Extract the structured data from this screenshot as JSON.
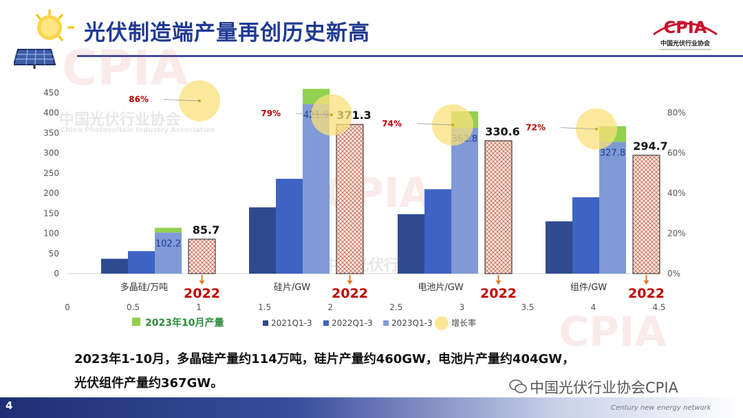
{
  "header": {
    "title": "光伏制造端产量再创历史新高",
    "logo_text": "CPIA",
    "logo_subtitle": "中国光伏行业协会"
  },
  "watermark": {
    "cpia": "CPIA",
    "cn": "中国光伏行业协会",
    "en": "China Photovoltaic Industry Association"
  },
  "summary": {
    "line1": "2023年1-10月，多晶硅产量约114万吨，硅片产量约460GW，电池片产量约404GW，",
    "line2": "光伏组件产量约367GW。"
  },
  "footer": {
    "page_number": "4",
    "wechat_account": "中国光伏行业协会CPIA",
    "site": "Century new energy network"
  },
  "colors": {
    "s2021": "#2f4b8f",
    "s2022": "#3f63c4",
    "s2023": "#7f9ad6",
    "oct": "#92d050",
    "growth_bubble": "#f9e07a",
    "growth_label": "#c00000",
    "year_label": "#c00000",
    "arrow": "#e07b28",
    "hatch_fill": "#fbe9d8",
    "hatch_line": "#c0504d"
  },
  "chart_data": {
    "type": "bar",
    "categories": [
      "多晶硅/万吨",
      "硅片/GW",
      "电池片/GW",
      "组件/GW"
    ],
    "series": [
      {
        "name": "2021Q1-3",
        "values": [
          37,
          165,
          148,
          130
        ]
      },
      {
        "name": "2022Q1-3",
        "values": [
          56,
          236,
          210,
          190
        ]
      },
      {
        "name": "2023Q1-3",
        "values": [
          102.2,
          421.9,
          362.8,
          327.8
        ],
        "labels": [
          "102.2",
          "421.9",
          "362.8",
          "327.8"
        ]
      },
      {
        "name": "2023年10月产量",
        "values": [
          12,
          38,
          41,
          39
        ],
        "stacked_on": "2023Q1-3"
      },
      {
        "name": "增长率",
        "axis": "right",
        "values": [
          0.86,
          0.79,
          0.74,
          0.72
        ],
        "labels": [
          "86%",
          "79%",
          "74%",
          "72%"
        ]
      }
    ],
    "full_year_2022": {
      "label": "2022",
      "values": [
        85.7,
        371.3,
        330.6,
        294.7
      ],
      "value_labels": [
        "85.7",
        "371.3",
        "330.6",
        "294.7"
      ]
    },
    "y_left": {
      "min": 0,
      "max": 450,
      "ticks": [
        "0",
        "50",
        "100",
        "150",
        "200",
        "250",
        "300",
        "350",
        "400",
        "450"
      ]
    },
    "y_right": {
      "min": 0,
      "max": 0.9,
      "ticks": [
        "0%",
        "20%",
        "40%",
        "60%",
        "80%"
      ]
    },
    "x_secondary": {
      "min": 0,
      "max": 4.5,
      "ticks": [
        "0",
        "0.5",
        "1",
        "1.5",
        "2",
        "2.5",
        "3",
        "3.5",
        "4",
        "4.5"
      ]
    },
    "legend": {
      "placement": "bottom",
      "items": [
        "2021Q1-3",
        "2022Q1-3",
        "2023Q1-3",
        "增长率"
      ],
      "oct_item": "2023年10月产量"
    }
  }
}
